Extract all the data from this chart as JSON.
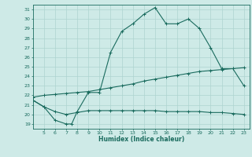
{
  "title": "",
  "xlabel": "Humidex (Indice chaleur)",
  "bg_color": "#ceeae7",
  "grid_color": "#aed4d0",
  "line_color": "#1a6b5e",
  "xlim": [
    4.0,
    23.5
  ],
  "ylim": [
    18.5,
    31.5
  ],
  "xticks": [
    5,
    6,
    7,
    8,
    9,
    10,
    11,
    12,
    13,
    14,
    15,
    16,
    17,
    18,
    19,
    20,
    21,
    22,
    23
  ],
  "yticks": [
    19,
    20,
    21,
    22,
    23,
    24,
    25,
    26,
    27,
    28,
    29,
    30,
    31
  ],
  "curve1_x": [
    4,
    5,
    6,
    7,
    7.5,
    8,
    9,
    10,
    11,
    12,
    13,
    14,
    15,
    16,
    17,
    18,
    19,
    20,
    21,
    22,
    23
  ],
  "curve1_y": [
    21.5,
    20.8,
    19.4,
    19.0,
    19.0,
    20.3,
    22.3,
    22.3,
    26.5,
    28.7,
    29.5,
    30.5,
    31.2,
    29.5,
    29.5,
    30.0,
    29.0,
    27.0,
    24.8,
    24.8,
    23.0
  ],
  "curve2_x": [
    4,
    5,
    6,
    7,
    8,
    9,
    10,
    11,
    12,
    13,
    14,
    15,
    16,
    17,
    18,
    19,
    20,
    21,
    22,
    23
  ],
  "curve2_y": [
    21.8,
    22.0,
    22.1,
    22.2,
    22.3,
    22.4,
    22.6,
    22.8,
    23.0,
    23.2,
    23.5,
    23.7,
    23.9,
    24.1,
    24.3,
    24.5,
    24.6,
    24.7,
    24.8,
    24.9
  ],
  "curve3_x": [
    4,
    5,
    6,
    7,
    8,
    9,
    10,
    11,
    12,
    13,
    14,
    15,
    16,
    17,
    18,
    19,
    20,
    21,
    22,
    23
  ],
  "curve3_y": [
    21.5,
    20.8,
    20.3,
    20.0,
    20.2,
    20.4,
    20.4,
    20.4,
    20.4,
    20.4,
    20.4,
    20.4,
    20.3,
    20.3,
    20.3,
    20.3,
    20.2,
    20.2,
    20.1,
    20.0
  ]
}
